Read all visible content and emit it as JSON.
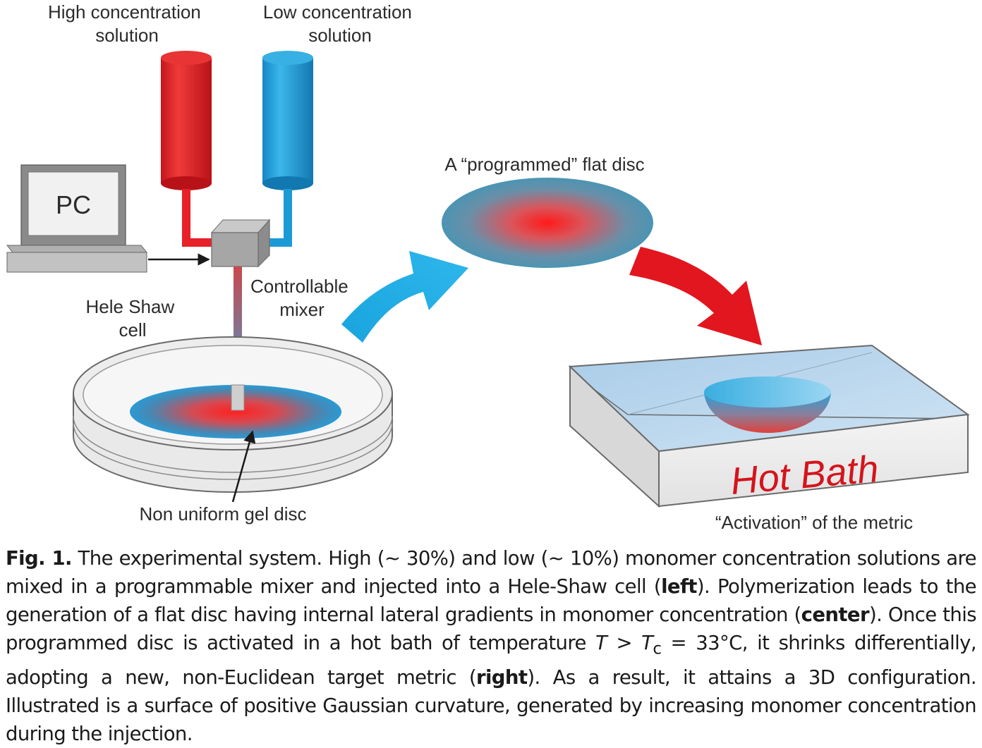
{
  "labels": {
    "high_solution": [
      "High concentration",
      "solution"
    ],
    "low_solution": [
      "Low concentration",
      "solution"
    ],
    "pc": "PC",
    "mixer": [
      "Controllable",
      "mixer"
    ],
    "hele_shaw": [
      "Hele Shaw",
      "cell"
    ],
    "gel_disc": "Non uniform gel disc",
    "programmed_disc": "A “programmed” flat disc",
    "hot_bath": "Hot Bath",
    "activation": "“Activation” of the metric"
  },
  "caption": {
    "fig_label": "Fig. 1.",
    "p1": " The experimental system. High (~ 30%) and low (~ 10%) monomer concentration solutions are mixed in a programmable mixer and injected into a Hele-Shaw cell (",
    "left": "left",
    "p2": "). Polymerization leads to the generation of a flat disc having internal lateral gradients in monomer concentration (",
    "center": "center",
    "p3": "). Once this programmed disc is activated in a hot bath of temperature ",
    "T": "T",
    "gt": " > ",
    "Tc": "T",
    "sub_c": "c",
    "p4": " = 33°C, it shrinks differentially, adopting a new, non-Euclidean target metric (",
    "right": "right",
    "p5": "). As a result, it attains a 3D configuration. Illustrated is a surface of positive Gaussian curvature, generated by increasing monomer concentration during the injection."
  },
  "colors": {
    "high": "#e8202a",
    "low": "#1c9ad6",
    "hot_text": "#d4141c"
  }
}
